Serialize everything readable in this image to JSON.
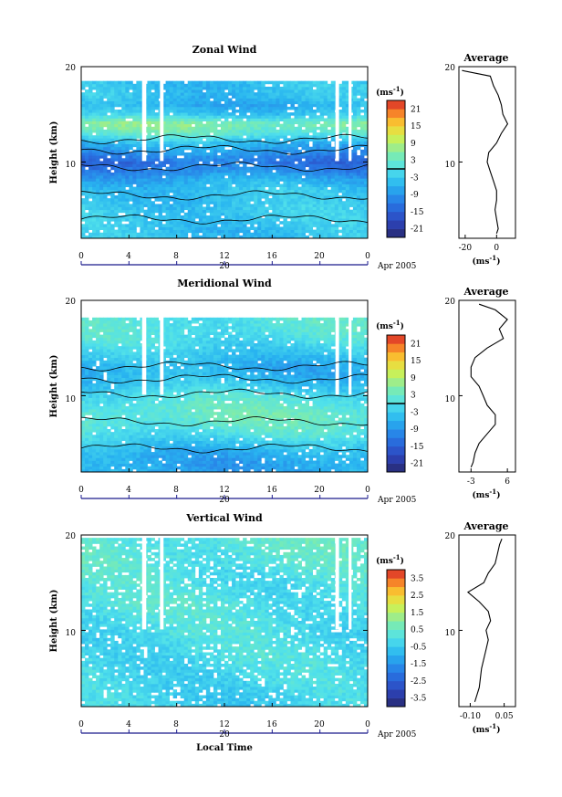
{
  "chart_data": [
    {
      "type": "heatmap",
      "title": "Zonal Wind",
      "ylabel": "Height (km)",
      "ylim": [
        2,
        20
      ],
      "yticks": [
        "10",
        "20"
      ],
      "xlim": [
        0,
        24
      ],
      "xticks": [
        "0",
        "4",
        "8",
        "12",
        "16",
        "20",
        "0"
      ],
      "date_label": "20",
      "month_label": "Apr 2005",
      "colorbar": {
        "label": "(ms",
        "exp": "-1",
        "close": ")",
        "ticks": [
          "21",
          "15",
          "9",
          "3",
          "-3",
          "-9",
          "-15",
          "-21"
        ],
        "range": [
          -24,
          24
        ]
      },
      "data_top_km": 17.5,
      "field": [
        {
          "h": 3,
          "v": -4
        },
        {
          "h": 4,
          "v": -3
        },
        {
          "h": 5,
          "v": -3
        },
        {
          "h": 6,
          "v": -4
        },
        {
          "h": 7,
          "v": -4
        },
        {
          "h": 8,
          "v": -6
        },
        {
          "h": 9,
          "v": -10
        },
        {
          "h": 10,
          "v": -13
        },
        {
          "h": 11,
          "v": -9
        },
        {
          "h": 12,
          "v": -5
        },
        {
          "h": 13,
          "v": 2
        },
        {
          "h": 14,
          "v": 6
        },
        {
          "h": 15,
          "v": -3
        },
        {
          "h": 16,
          "v": -6
        },
        {
          "h": 17,
          "v": -4
        }
      ],
      "average": {
        "title": "Average",
        "xticks": [
          "-20",
          "0"
        ],
        "xlim": [
          -24,
          12
        ],
        "xlabel": "(ms",
        "xlabel_exp": "-1",
        "xlabel_close": ")",
        "ylim": [
          2,
          20
        ],
        "yticks": [
          "10",
          "20"
        ],
        "profile": [
          {
            "h": 2.5,
            "v": 0
          },
          {
            "h": 3,
            "v": 1
          },
          {
            "h": 4,
            "v": 0
          },
          {
            "h": 5,
            "v": -1
          },
          {
            "h": 6,
            "v": 0
          },
          {
            "h": 7,
            "v": 0
          },
          {
            "h": 8,
            "v": -2
          },
          {
            "h": 9,
            "v": -4
          },
          {
            "h": 10,
            "v": -6
          },
          {
            "h": 11,
            "v": -5
          },
          {
            "h": 12,
            "v": 0
          },
          {
            "h": 13,
            "v": 3
          },
          {
            "h": 14,
            "v": 7
          },
          {
            "h": 15,
            "v": 4
          },
          {
            "h": 16,
            "v": 3
          },
          {
            "h": 17,
            "v": 1
          },
          {
            "h": 18,
            "v": -2
          },
          {
            "h": 19,
            "v": -4
          },
          {
            "h": 19.6,
            "v": -22
          }
        ]
      }
    },
    {
      "type": "heatmap",
      "title": "Meridional Wind",
      "ylabel": "Height (km)",
      "ylim": [
        2,
        20
      ],
      "yticks": [
        "10",
        "20"
      ],
      "xlim": [
        0,
        24
      ],
      "xticks": [
        "0",
        "4",
        "8",
        "12",
        "16",
        "20",
        "0"
      ],
      "date_label": "20",
      "month_label": "Apr 2005",
      "colorbar": {
        "label": "(ms",
        "exp": "-1",
        "close": ")",
        "ticks": [
          "21",
          "15",
          "9",
          "3",
          "-3",
          "-9",
          "-15",
          "-21"
        ],
        "range": [
          -24,
          24
        ]
      },
      "data_top_km": 17.5,
      "field": [
        {
          "h": 3,
          "v": -7
        },
        {
          "h": 4,
          "v": -6
        },
        {
          "h": 5,
          "v": -3
        },
        {
          "h": 6,
          "v": 0
        },
        {
          "h": 7,
          "v": 2
        },
        {
          "h": 8,
          "v": 3
        },
        {
          "h": 9,
          "v": 2
        },
        {
          "h": 10,
          "v": 0
        },
        {
          "h": 11,
          "v": -3
        },
        {
          "h": 12,
          "v": -5
        },
        {
          "h": 13,
          "v": -6
        },
        {
          "h": 14,
          "v": -4
        },
        {
          "h": 15,
          "v": -2
        },
        {
          "h": 16,
          "v": 0
        },
        {
          "h": 17,
          "v": 1
        }
      ],
      "average": {
        "title": "Average",
        "xticks": [
          "-3",
          "6"
        ],
        "xlim": [
          -6,
          8
        ],
        "xlabel": "(ms",
        "xlabel_exp": "-1",
        "xlabel_close": ")",
        "ylim": [
          2,
          20
        ],
        "yticks": [
          "10",
          "20"
        ],
        "profile": [
          {
            "h": 2.5,
            "v": -3
          },
          {
            "h": 3,
            "v": -2.5
          },
          {
            "h": 4,
            "v": -2
          },
          {
            "h": 5,
            "v": -1
          },
          {
            "h": 6,
            "v": 1
          },
          {
            "h": 7,
            "v": 3
          },
          {
            "h": 8,
            "v": 3
          },
          {
            "h": 9,
            "v": 1
          },
          {
            "h": 10,
            "v": 0
          },
          {
            "h": 11,
            "v": -1
          },
          {
            "h": 12,
            "v": -3
          },
          {
            "h": 13,
            "v": -3
          },
          {
            "h": 14,
            "v": -2
          },
          {
            "h": 15,
            "v": 1
          },
          {
            "h": 16,
            "v": 5
          },
          {
            "h": 17,
            "v": 4
          },
          {
            "h": 18,
            "v": 6
          },
          {
            "h": 19,
            "v": 3
          },
          {
            "h": 19.6,
            "v": -1
          }
        ]
      }
    },
    {
      "type": "heatmap",
      "title": "Vertical Wind",
      "ylabel": "Height (km)",
      "ylim": [
        2,
        20
      ],
      "yticks": [
        "10",
        "20"
      ],
      "xlim": [
        0,
        24
      ],
      "xticks": [
        "0",
        "4",
        "8",
        "12",
        "16",
        "20",
        "0"
      ],
      "date_label": "20",
      "month_label": "Apr 2005",
      "xlabel": "Local Time",
      "colorbar": {
        "label": "(ms",
        "exp": "-1",
        "close": ")",
        "ticks": [
          "3.5",
          "2.5",
          "1.5",
          "0.5",
          "-0.5",
          "-1.5",
          "-2.5",
          "-3.5"
        ],
        "range": [
          -4,
          4
        ]
      },
      "data_top_km": 19.5,
      "field": [
        {
          "h": 3,
          "v": -0.3
        },
        {
          "h": 5,
          "v": -0.2
        },
        {
          "h": 7,
          "v": -0.1
        },
        {
          "h": 9,
          "v": -0.1
        },
        {
          "h": 11,
          "v": 0
        },
        {
          "h": 13,
          "v": 0.1
        },
        {
          "h": 15,
          "v": 0
        },
        {
          "h": 17,
          "v": 0.2
        },
        {
          "h": 19,
          "v": 0.3
        }
      ],
      "average": {
        "title": "Average",
        "xticks": [
          "-0.10",
          "0.05"
        ],
        "xlim": [
          -0.15,
          0.1
        ],
        "xlabel": "(ms",
        "xlabel_exp": "-1",
        "xlabel_close": ")",
        "ylim": [
          2,
          20
        ],
        "yticks": [
          "10",
          "20"
        ],
        "profile": [
          {
            "h": 2.5,
            "v": -0.08
          },
          {
            "h": 4,
            "v": -0.06
          },
          {
            "h": 6,
            "v": -0.05
          },
          {
            "h": 7,
            "v": -0.04
          },
          {
            "h": 8,
            "v": -0.03
          },
          {
            "h": 9,
            "v": -0.02
          },
          {
            "h": 10,
            "v": -0.03
          },
          {
            "h": 11,
            "v": -0.01
          },
          {
            "h": 12,
            "v": -0.02
          },
          {
            "h": 13,
            "v": -0.06
          },
          {
            "h": 14,
            "v": -0.11
          },
          {
            "h": 15,
            "v": -0.04
          },
          {
            "h": 16,
            "v": -0.02
          },
          {
            "h": 17,
            "v": 0.01
          },
          {
            "h": 18,
            "v": 0.02
          },
          {
            "h": 19,
            "v": 0.03
          },
          {
            "h": 19.6,
            "v": 0.04
          }
        ]
      }
    }
  ]
}
